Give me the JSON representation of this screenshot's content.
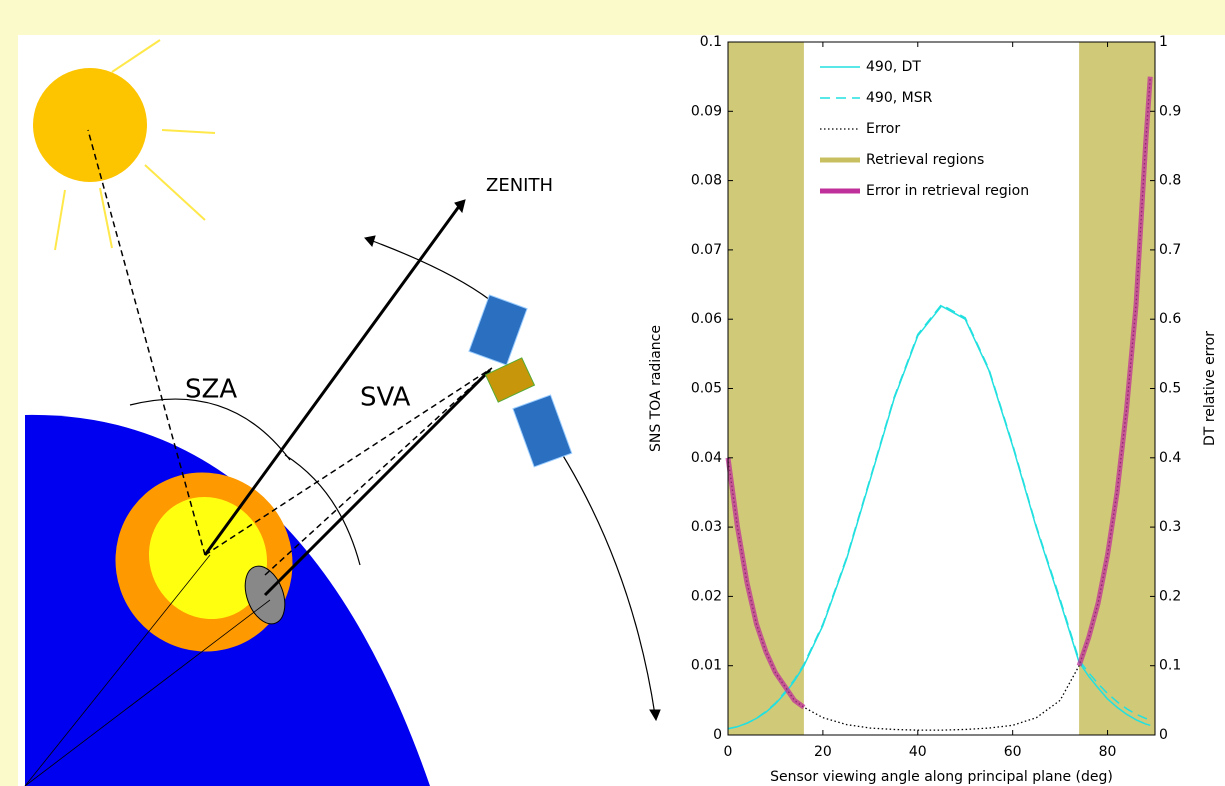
{
  "diagram": {
    "labels": [
      "ZENITH",
      "SZA",
      "SVA"
    ]
  },
  "chart_data": {
    "type": "line",
    "x": [
      0,
      2,
      4,
      6,
      8,
      10,
      12,
      14,
      16,
      20,
      25,
      30,
      35,
      40,
      45,
      50,
      55,
      60,
      65,
      70,
      74,
      76,
      78,
      80,
      82,
      84,
      86,
      88,
      89
    ],
    "series": [
      {
        "name": "490, DT",
        "color": "#22e0e0",
        "style": "solid",
        "values": [
          0.0009,
          0.0012,
          0.0017,
          0.0024,
          0.0033,
          0.0045,
          0.006,
          0.0078,
          0.01,
          0.0158,
          0.0254,
          0.0369,
          0.0485,
          0.0576,
          0.0619,
          0.06,
          0.0526,
          0.0417,
          0.0299,
          0.0193,
          0.0105,
          0.0085,
          0.0068,
          0.0052,
          0.004,
          0.003,
          0.0022,
          0.0016,
          0.0014
        ]
      },
      {
        "name": "490, MSR",
        "color": "#22e0e0",
        "style": "dashed",
        "values": [
          0.0009,
          0.0012,
          0.0017,
          0.0024,
          0.0034,
          0.0046,
          0.0062,
          0.008,
          0.0102,
          0.016,
          0.0256,
          0.0371,
          0.0487,
          0.0578,
          0.0621,
          0.0602,
          0.0528,
          0.0419,
          0.0301,
          0.0196,
          0.0108,
          0.009,
          0.0074,
          0.006,
          0.0048,
          0.0038,
          0.003,
          0.0024,
          0.0022
        ]
      },
      {
        "name": "Error",
        "color": "#000000",
        "style": "dotted",
        "axis": "y2",
        "values": [
          0.4,
          0.3,
          0.22,
          0.16,
          0.12,
          0.09,
          0.07,
          0.05,
          0.04,
          0.025,
          0.015,
          0.01,
          0.008,
          0.007,
          0.007,
          0.008,
          0.01,
          0.014,
          0.025,
          0.05,
          0.1,
          0.14,
          0.19,
          0.26,
          0.35,
          0.47,
          0.62,
          0.85,
          0.95
        ]
      },
      {
        "name": "Error in retrieval region",
        "color": "#c0309a",
        "style": "thick",
        "axis": "y2",
        "values": [
          0.4,
          0.3,
          0.22,
          0.16,
          0.12,
          0.09,
          0.07,
          0.05,
          0.04,
          null,
          null,
          null,
          null,
          null,
          null,
          null,
          null,
          null,
          null,
          null,
          0.1,
          0.14,
          0.19,
          0.26,
          0.35,
          0.47,
          0.62,
          0.85,
          0.95
        ]
      }
    ],
    "regions": {
      "name": "Retrieval regions",
      "color": "#c8c060",
      "spans": [
        [
          0,
          16
        ],
        [
          74,
          90
        ]
      ]
    },
    "xlabel": "Sensor viewing angle along principal plane (deg)",
    "ylabel": "SNS TOA radiance",
    "y2label": "DT relative error",
    "xlim": [
      0,
      90
    ],
    "xticks": [
      0,
      20,
      40,
      60,
      80
    ],
    "ylim": [
      0,
      0.1
    ],
    "yticks": [
      0,
      0.01,
      0.02,
      0.03,
      0.04,
      0.05,
      0.06,
      0.07,
      0.08,
      0.09,
      0.1
    ],
    "y2lim": [
      0,
      1
    ],
    "y2ticks": [
      0,
      0.1,
      0.2,
      0.3,
      0.4,
      0.5,
      0.6,
      0.7,
      0.8,
      0.9,
      1
    ],
    "legend": "upper-left"
  }
}
